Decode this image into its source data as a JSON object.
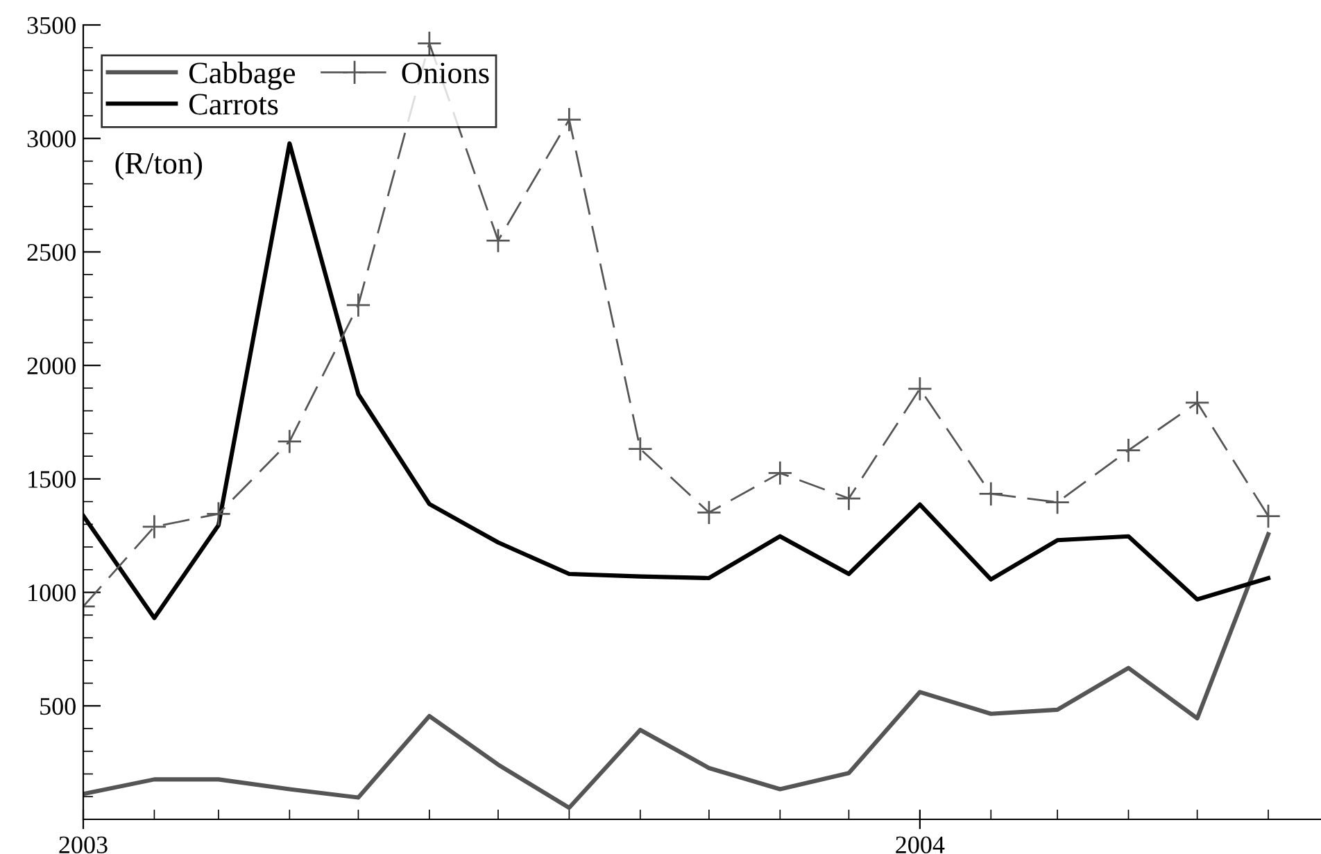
{
  "chart_data": {
    "type": "line",
    "x": [
      "2003-01",
      "2003-02",
      "2003-03",
      "2003-04",
      "2003-05",
      "2003-06",
      "2003-07",
      "2003-08",
      "2003-09",
      "2003-10",
      "2003-11",
      "2003-12",
      "2004-01",
      "2004-02",
      "2004-03",
      "2004-04",
      "2004-05",
      "2004-06"
    ],
    "series": [
      {
        "name": "Cabbage",
        "color": "#555555",
        "marker": "none",
        "line_style": "solid",
        "values": [
          112,
          176,
          176,
          133,
          96,
          455,
          241,
          51,
          394,
          226,
          133,
          204,
          561,
          465,
          483,
          667,
          445,
          1256
        ]
      },
      {
        "name": "Carrots",
        "color": "#000000",
        "marker": "none",
        "line_style": "solid",
        "values": [
          1338,
          887,
          1296,
          2978,
          1873,
          1389,
          1220,
          1081,
          1070,
          1063,
          1247,
          1081,
          1387,
          1057,
          1230,
          1247,
          969,
          1063
        ]
      },
      {
        "name": "Onions",
        "color": "#555555",
        "marker": "cross",
        "line_style": "dashed",
        "values": [
          938,
          1289,
          1346,
          1665,
          2266,
          3419,
          2550,
          3083,
          1632,
          1352,
          1526,
          1414,
          1897,
          1434,
          1397,
          1626,
          1836,
          1336
        ]
      }
    ],
    "annotations": [
      "(R/ton)"
    ],
    "xlim": [
      "2003-01-01",
      "2004-06-24"
    ],
    "xticks": [
      {
        "value": "2003-01",
        "label": "2003"
      },
      {
        "value": "2003-02",
        "label": null
      },
      {
        "value": "2003-03",
        "label": null
      },
      {
        "value": "2003-04",
        "label": null
      },
      {
        "value": "2003-05",
        "label": null
      },
      {
        "value": "2003-06",
        "label": null
      },
      {
        "value": "2003-07",
        "label": null
      },
      {
        "value": "2003-08",
        "label": null
      },
      {
        "value": "2003-09",
        "label": null
      },
      {
        "value": "2003-10",
        "label": null
      },
      {
        "value": "2003-11",
        "label": null
      },
      {
        "value": "2003-12",
        "label": null
      },
      {
        "value": "2004-01",
        "label": "2004"
      },
      {
        "value": "2004-02",
        "label": null
      },
      {
        "value": "2004-03",
        "label": null
      },
      {
        "value": "2004-04",
        "label": null
      },
      {
        "value": "2004-05",
        "label": null
      },
      {
        "value": "2004-06",
        "label": null
      }
    ],
    "ylim": [
      0,
      3500
    ],
    "yticks": [
      {
        "value": 100,
        "label": null
      },
      {
        "value": 200,
        "label": null
      },
      {
        "value": 300,
        "label": null
      },
      {
        "value": 400,
        "label": null
      },
      500,
      {
        "value": 600,
        "label": null
      },
      {
        "value": 700,
        "label": null
      },
      {
        "value": 800,
        "label": null
      },
      {
        "value": 900,
        "label": null
      },
      1000,
      {
        "value": 1100,
        "label": null
      },
      {
        "value": 1200,
        "label": null
      },
      {
        "value": 1300,
        "label": null
      },
      {
        "value": 1400,
        "label": null
      },
      1500,
      {
        "value": 1600,
        "label": null
      },
      {
        "value": 1700,
        "label": null
      },
      {
        "value": 1800,
        "label": null
      },
      {
        "value": 1900,
        "label": null
      },
      2000,
      {
        "value": 2100,
        "label": null
      },
      {
        "value": 2200,
        "label": null
      },
      {
        "value": 2300,
        "label": null
      },
      {
        "value": 2400,
        "label": null
      },
      2500,
      {
        "value": 2600,
        "label": null
      },
      {
        "value": 2700,
        "label": null
      },
      {
        "value": 2800,
        "label": null
      },
      {
        "value": 2900,
        "label": null
      },
      3000,
      {
        "value": 3100,
        "label": null
      },
      {
        "value": 3200,
        "label": null
      },
      {
        "value": 3300,
        "label": null
      },
      {
        "value": 3400,
        "label": null
      },
      3500
    ],
    "grid": false,
    "legend": "top left"
  }
}
